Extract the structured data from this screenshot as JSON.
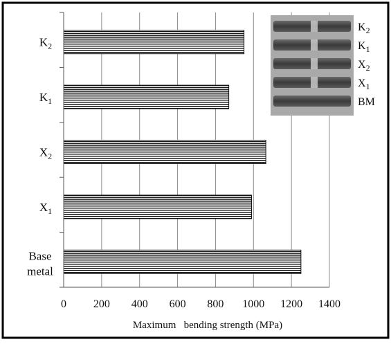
{
  "chart_data": {
    "type": "bar",
    "orientation": "horizontal",
    "categories": [
      {
        "main": "K",
        "sub": "2"
      },
      {
        "main": "K",
        "sub": "1"
      },
      {
        "main": "X",
        "sub": "2"
      },
      {
        "main": "X",
        "sub": "1"
      },
      {
        "main": "Base metal",
        "lines": [
          "Base",
          "metal"
        ]
      }
    ],
    "values": [
      950,
      870,
      1065,
      990,
      1250
    ],
    "xlabel": "Maximum   bending strength (MPa)",
    "ylabel": "",
    "xlim": [
      0,
      1400
    ],
    "xticks": [
      "0",
      "200",
      "400",
      "600",
      "800",
      "1000",
      "1200",
      "1400"
    ],
    "grid": "vertical",
    "bar_fill": "horizontal-hatch",
    "colors": {
      "bar_line": "#111111",
      "grid": "#8c8c8c",
      "frame": "#000000"
    },
    "inset_photo": {
      "description_labels": [
        {
          "main": "K",
          "sub": "2"
        },
        {
          "main": "K",
          "sub": "1"
        },
        {
          "main": "X",
          "sub": "2"
        },
        {
          "main": "X",
          "sub": "1"
        },
        {
          "main": "BM",
          "sub": ""
        }
      ]
    }
  }
}
